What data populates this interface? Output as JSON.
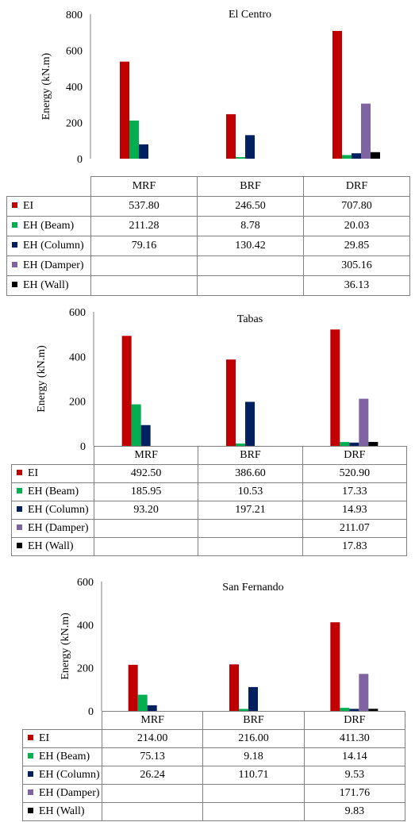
{
  "colors": {
    "EI": "#C00000",
    "EH (Beam)": "#00B050",
    "EH (Column)": "#002060",
    "EH (Damper)": "#8064A2",
    "EH (Wall)": "#000000"
  },
  "chart_data": [
    {
      "type": "bar",
      "title": "El Centro",
      "ylabel": "Energy (kN.m)",
      "ylim": [
        0,
        800
      ],
      "yticks": [
        "0",
        "200",
        "400",
        "600",
        "800"
      ],
      "categories": [
        "MRF",
        "BRF",
        "DRF"
      ],
      "series": [
        {
          "name": "EI",
          "values": [
            537.8,
            246.5,
            707.8
          ],
          "labels": [
            "537.80",
            "246.50",
            "707.80"
          ]
        },
        {
          "name": "EH (Beam)",
          "values": [
            211.28,
            8.78,
            20.03
          ],
          "labels": [
            "211.28",
            "8.78",
            "20.03"
          ]
        },
        {
          "name": "EH (Column)",
          "values": [
            79.16,
            130.42,
            29.85
          ],
          "labels": [
            "79.16",
            "130.42",
            "29.85"
          ]
        },
        {
          "name": "EH (Damper)",
          "values": [
            null,
            null,
            305.16
          ],
          "labels": [
            "",
            "",
            "305.16"
          ]
        },
        {
          "name": "EH (Wall)",
          "values": [
            null,
            null,
            36.13
          ],
          "labels": [
            "",
            "",
            "36.13"
          ]
        }
      ]
    },
    {
      "type": "bar",
      "title": "Tabas",
      "ylabel": "Energy (kN.m)",
      "ylim": [
        0,
        600
      ],
      "yticks": [
        "0",
        "200",
        "400",
        "600"
      ],
      "categories": [
        "MRF",
        "BRF",
        "DRF"
      ],
      "series": [
        {
          "name": "EI",
          "values": [
            492.5,
            386.6,
            520.9
          ],
          "labels": [
            "492.50",
            "386.60",
            "520.90"
          ]
        },
        {
          "name": "EH (Beam)",
          "values": [
            185.95,
            10.53,
            17.33
          ],
          "labels": [
            "185.95",
            "10.53",
            "17.33"
          ]
        },
        {
          "name": "EH (Column)",
          "values": [
            93.2,
            197.21,
            14.93
          ],
          "labels": [
            "93.20",
            "197.21",
            "14.93"
          ]
        },
        {
          "name": "EH (Damper)",
          "values": [
            null,
            null,
            211.07
          ],
          "labels": [
            "",
            "",
            "211.07"
          ]
        },
        {
          "name": "EH (Wall)",
          "values": [
            null,
            null,
            17.83
          ],
          "labels": [
            "",
            "",
            "17.83"
          ]
        }
      ]
    },
    {
      "type": "bar",
      "title": "San Fernando",
      "ylabel": "Energy (kN.m)",
      "ylim": [
        0,
        600
      ],
      "yticks": [
        "0",
        "200",
        "400",
        "600"
      ],
      "categories": [
        "MRF",
        "BRF",
        "DRF"
      ],
      "series": [
        {
          "name": "EI",
          "values": [
            214.0,
            216.0,
            411.3
          ],
          "labels": [
            "214.00",
            "216.00",
            "411.30"
          ]
        },
        {
          "name": "EH (Beam)",
          "values": [
            75.13,
            9.18,
            14.14
          ],
          "labels": [
            "75.13",
            "9.18",
            "14.14"
          ]
        },
        {
          "name": "EH (Column)",
          "values": [
            26.24,
            110.71,
            9.53
          ],
          "labels": [
            "26.24",
            "110.71",
            "9.53"
          ]
        },
        {
          "name": "EH (Damper)",
          "values": [
            null,
            null,
            171.76
          ],
          "labels": [
            "",
            "",
            "171.76"
          ]
        },
        {
          "name": "EH (Wall)",
          "values": [
            null,
            null,
            9.83
          ],
          "labels": [
            "",
            "",
            "9.83"
          ]
        }
      ]
    }
  ]
}
